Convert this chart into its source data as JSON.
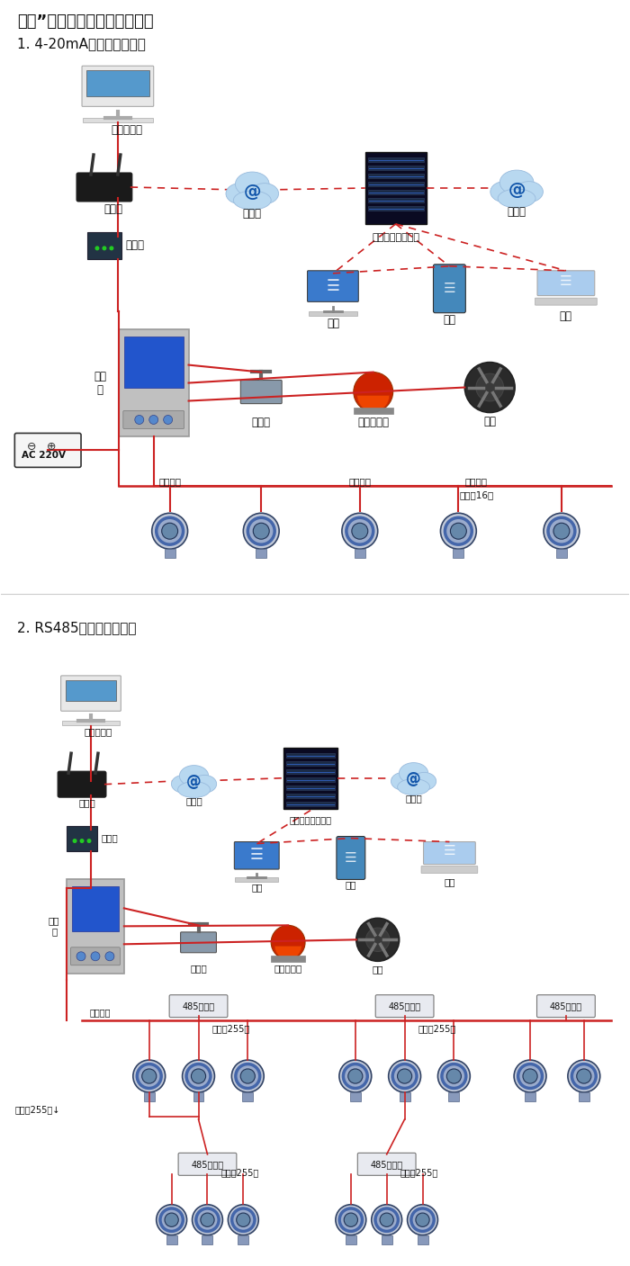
{
  "title1": "大众”系列带显示固定式检测仪",
  "subtitle1": "1. 4-20mA信号连接系统图",
  "subtitle2": "2. RS485信号连接系统图",
  "bg_color": "#ffffff",
  "red": "#cc2222",
  "gray": "#888888"
}
